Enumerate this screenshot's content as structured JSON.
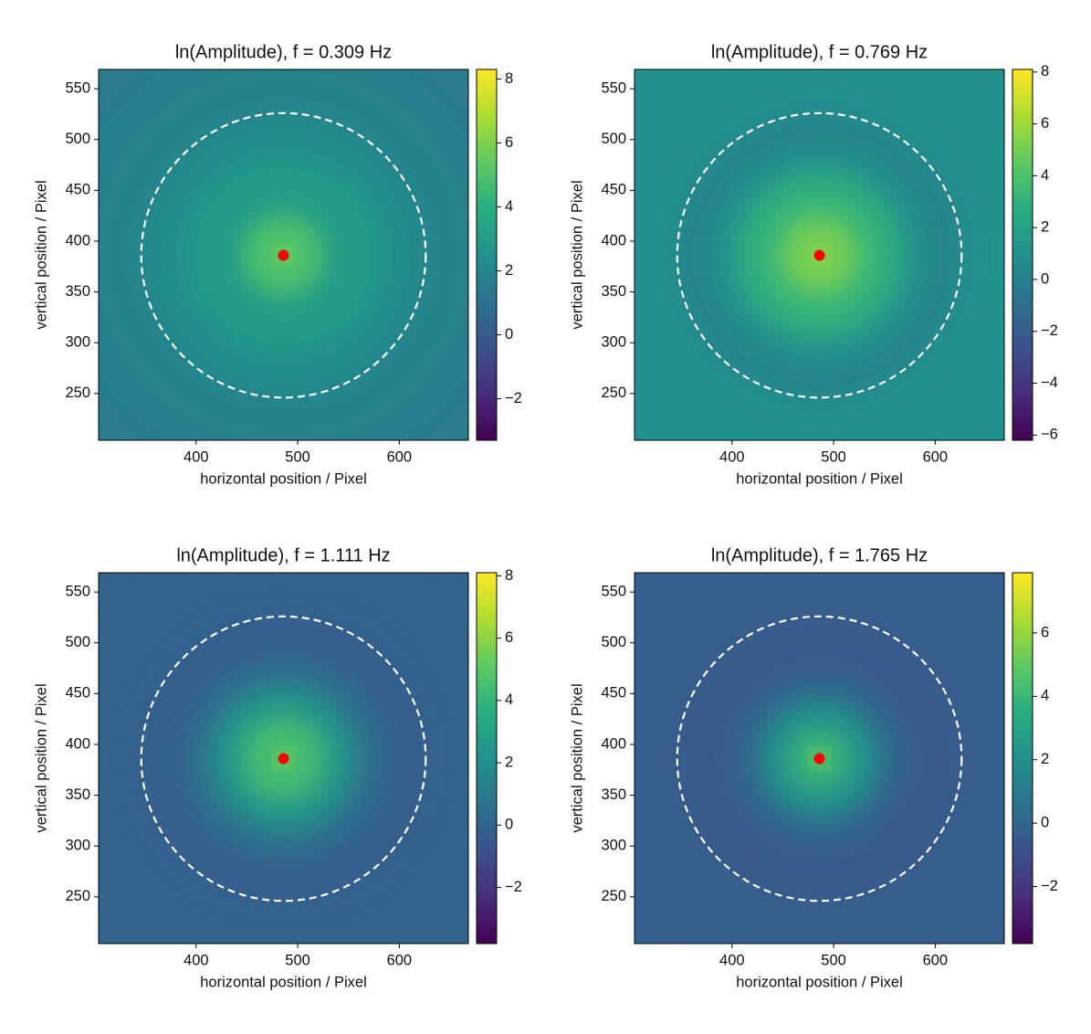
{
  "chart_data": [
    {
      "type": "heatmap",
      "title": "ln(Amplitude), f = 0.309 Hz",
      "x_label": "horizontal position / Pixel",
      "y_label": "vertical position / Pixel",
      "xlim": [
        304,
        668
      ],
      "ylim": [
        204,
        569
      ],
      "xticks": [
        400,
        500,
        600
      ],
      "yticks": [
        250,
        300,
        350,
        400,
        450,
        500,
        550
      ],
      "colormap": "viridis",
      "clim": [
        -3.3,
        8.3
      ],
      "cticks": [
        {
          "value": -2,
          "label": "−2"
        },
        0,
        2,
        4,
        6,
        8
      ],
      "radial_profile": {
        "r": [
          0,
          40,
          100,
          140,
          200,
          260
        ],
        "values": [
          7.8,
          5,
          3,
          2.2,
          1.8,
          1.5
        ]
      },
      "circle": {
        "cx": 486,
        "cy": 386,
        "r": 140
      },
      "center": {
        "x": 486,
        "y": 386
      }
    },
    {
      "type": "heatmap",
      "title": "ln(Amplitude), f = 0.769 Hz",
      "x_label": "horizontal position / Pixel",
      "y_label": "vertical position / Pixel",
      "xlim": [
        304,
        668
      ],
      "ylim": [
        204,
        569
      ],
      "xticks": [
        400,
        500,
        600
      ],
      "yticks": [
        250,
        300,
        350,
        400,
        450,
        500,
        550
      ],
      "colormap": "viridis",
      "clim": [
        -6.2,
        8.1
      ],
      "cticks": [
        {
          "value": -6,
          "label": "−6"
        },
        {
          "value": -4,
          "label": "−4"
        },
        {
          "value": -2,
          "label": "−2"
        },
        0,
        2,
        4,
        6,
        8
      ],
      "radial_profile": {
        "r": [
          0,
          40,
          80,
          110,
          140,
          260
        ],
        "values": [
          7.8,
          5,
          3,
          1,
          0,
          1
        ]
      },
      "circle": {
        "cx": 486,
        "cy": 386,
        "r": 140
      },
      "center": {
        "x": 486,
        "y": 386
      }
    },
    {
      "type": "heatmap",
      "title": "ln(Amplitude), f = 1.111 Hz",
      "x_label": "horizontal position / Pixel",
      "y_label": "vertical position / Pixel",
      "xlim": [
        304,
        668
      ],
      "ylim": [
        204,
        569
      ],
      "xticks": [
        400,
        500,
        600
      ],
      "yticks": [
        250,
        300,
        350,
        400,
        450,
        500,
        550
      ],
      "colormap": "viridis",
      "clim": [
        -3.8,
        8.1
      ],
      "cticks": [
        {
          "value": -2,
          "label": "−2"
        },
        0,
        2,
        4,
        6,
        8
      ],
      "radial_profile": {
        "r": [
          0,
          40,
          70,
          100,
          140,
          260
        ],
        "values": [
          7.8,
          4.5,
          2.5,
          0.5,
          -0.3,
          0
        ]
      },
      "circle": {
        "cx": 486,
        "cy": 386,
        "r": 140
      },
      "center": {
        "x": 486,
        "y": 386
      }
    },
    {
      "type": "heatmap",
      "title": "ln(Amplitude), f = 1.765 Hz",
      "x_label": "horizontal position / Pixel",
      "y_label": "vertical position / Pixel",
      "xlim": [
        304,
        668
      ],
      "ylim": [
        204,
        569
      ],
      "xticks": [
        400,
        500,
        600
      ],
      "yticks": [
        250,
        300,
        350,
        400,
        450,
        500,
        550
      ],
      "colormap": "viridis",
      "clim": [
        -3.8,
        7.9
      ],
      "cticks": [
        {
          "value": -2,
          "label": "−2"
        },
        0,
        2,
        4,
        6
      ],
      "radial_profile": {
        "r": [
          0,
          30,
          60,
          85,
          140,
          260
        ],
        "values": [
          7.5,
          4,
          2,
          0,
          -0.5,
          -0.3
        ]
      },
      "circle": {
        "cx": 486,
        "cy": 386,
        "r": 140
      },
      "center": {
        "x": 486,
        "y": 386
      }
    }
  ]
}
